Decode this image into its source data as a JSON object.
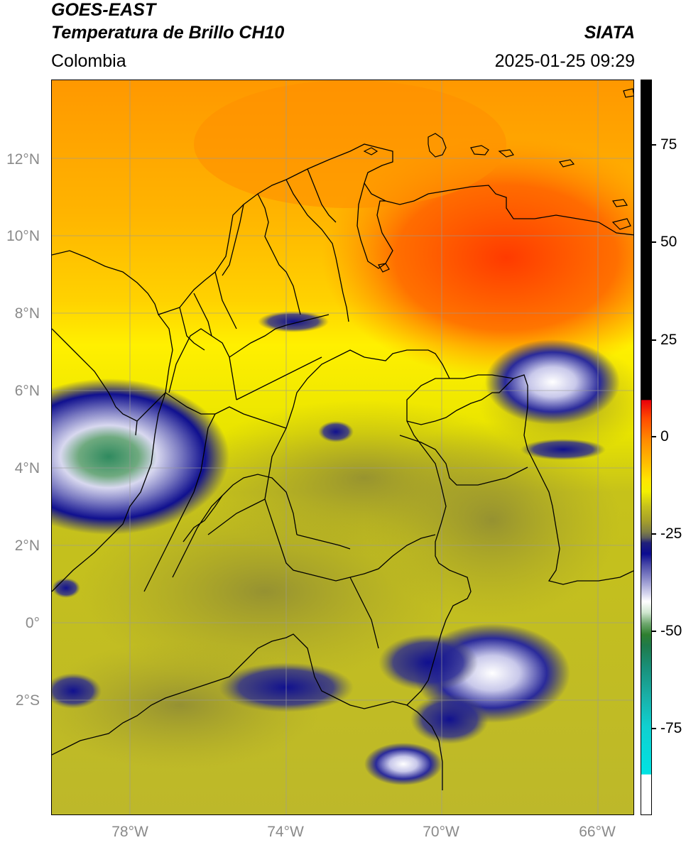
{
  "header": {
    "title_line1": "GOES-EAST",
    "title_line2": "Temperatura de Brillo CH10",
    "region": "Colombia",
    "source": "SIATA",
    "timestamp": "2025-01-25 09:29"
  },
  "axes": {
    "lat_ticks": [
      "12°N",
      "10°N",
      "8°N",
      "6°N",
      "4°N",
      "2°N",
      "0°",
      "2°S"
    ],
    "lon_ticks": [
      "78°W",
      "74°W",
      "70°W",
      "66°W"
    ]
  },
  "colorbar": {
    "ticks": [
      "75",
      "50",
      "25",
      "0",
      "-25",
      "-50",
      "-75"
    ]
  },
  "colors": {
    "warm_yellow": "#f0ee00",
    "orange": "#ff9a00",
    "red_orange": "#ff4a00",
    "olive": "#b8b428",
    "deep_blue": "#10108f",
    "cloud_white": "#e8e8f5",
    "cold_green": "#2f8a4f"
  }
}
